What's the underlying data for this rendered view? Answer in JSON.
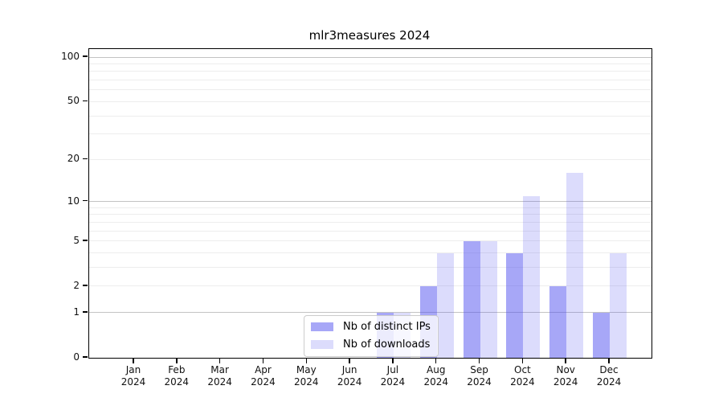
{
  "title": "mlr3measures 2024",
  "colors": {
    "bar_ips": "rgba(80,80,240,0.5)",
    "bar_downloads": "rgba(80,80,240,0.2)",
    "grid_major": "#c3c3c3",
    "grid_minor": "#ededed",
    "axis": "#000000",
    "legend_border": "#cccccc"
  },
  "chart_data": {
    "type": "bar",
    "title": "mlr3measures 2024",
    "x_categories": [
      "Jan",
      "Feb",
      "Mar",
      "Apr",
      "May",
      "Jun",
      "Jul",
      "Aug",
      "Sep",
      "Oct",
      "Nov",
      "Dec"
    ],
    "x_year": "2024",
    "series": [
      {
        "name": "Nb of distinct IPs",
        "color": "rgba(80,80,240,0.5)",
        "values": [
          0,
          0,
          0,
          0,
          0,
          0,
          1,
          2,
          5,
          4,
          2,
          1
        ]
      },
      {
        "name": "Nb of downloads",
        "color": "rgba(80,80,240,0.2)",
        "values": [
          0,
          0,
          0,
          0,
          0,
          0,
          1,
          4,
          5,
          11,
          16,
          4
        ]
      }
    ],
    "y_scale": "log1p",
    "ylim": [
      0,
      100
    ],
    "y_axis_ticks": [
      0,
      1,
      2,
      5,
      10,
      20,
      50,
      100
    ],
    "y_major_gridlines": [
      1,
      10,
      100
    ],
    "y_minor_gridlines": [
      2,
      3,
      4,
      5,
      6,
      7,
      8,
      9,
      20,
      30,
      40,
      50,
      60,
      70,
      80,
      90
    ],
    "grid": true,
    "legend_position": "inside-bottom-center",
    "xlabel": "",
    "ylabel": ""
  }
}
